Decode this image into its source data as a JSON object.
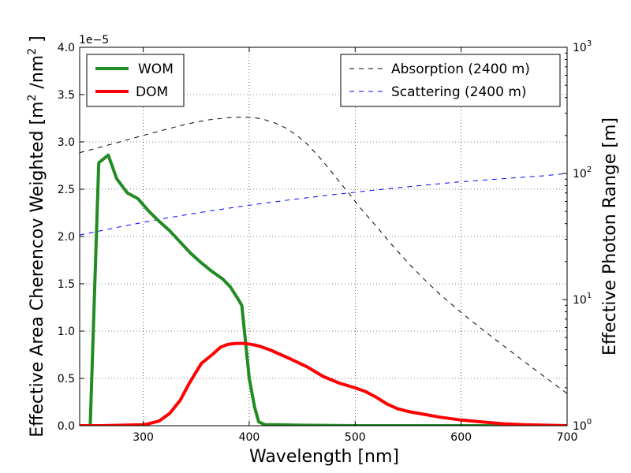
{
  "chart_data": {
    "type": "line",
    "xlabel": "Wavelength [nm]",
    "ylabel_left_prefix": "Effective Area Cherencov Weighted [m",
    "ylabel_left_sup1": "2",
    "ylabel_left_mid": " /nm",
    "ylabel_left_sup2": "2",
    "ylabel_left_suffix": " ]",
    "ylabel_right": "Effective Photon Range [m]",
    "offset_text": "1e−5",
    "xlim": [
      240,
      700
    ],
    "ylim_left": [
      0,
      4.0
    ],
    "ylim_right_log": [
      1,
      1000
    ],
    "x_ticks": [
      300,
      400,
      500,
      600,
      700
    ],
    "x_tick_labels": [
      "300",
      "400",
      "500",
      "600",
      "700"
    ],
    "y_left_ticks": [
      0,
      0.5,
      1.0,
      1.5,
      2.0,
      2.5,
      3.0,
      3.5,
      4.0
    ],
    "y_left_tick_labels": [
      "0.0",
      "0.5",
      "1.0",
      "1.5",
      "2.0",
      "2.5",
      "3.0",
      "3.5",
      "4.0"
    ],
    "y_right_ticks": [
      {
        "value": 1,
        "base": "10",
        "exp": "0"
      },
      {
        "value": 10,
        "base": "10",
        "exp": "1"
      },
      {
        "value": 100,
        "base": "10",
        "exp": "2"
      },
      {
        "value": 1000,
        "base": "10",
        "exp": "3"
      }
    ],
    "legend_left": {
      "location": "upper-left",
      "entries": [
        {
          "label": "WOM",
          "color": "#228b22"
        },
        {
          "label": "DOM",
          "color": "#ff0000"
        }
      ]
    },
    "legend_right": {
      "location": "upper-right",
      "entries": [
        {
          "label": "Absorption (2400 m)",
          "color": "#000000"
        },
        {
          "label": "Scattering (2400 m)",
          "color": "#0000ff"
        }
      ]
    },
    "series": [
      {
        "name": "WOM",
        "axis": "left",
        "color": "#228b22",
        "style": "solid",
        "x": [
          240,
          245,
          250,
          258,
          267,
          275,
          285,
          295,
          305,
          315,
          325,
          335,
          345,
          355,
          365,
          375,
          382,
          390,
          393,
          400,
          405,
          409,
          415,
          425,
          450,
          500,
          600,
          700
        ],
        "y": [
          0,
          0,
          0,
          2.78,
          2.86,
          2.61,
          2.46,
          2.4,
          2.27,
          2.16,
          2.06,
          1.94,
          1.82,
          1.72,
          1.63,
          1.55,
          1.47,
          1.33,
          1.27,
          0.5,
          0.2,
          0.04,
          0.01,
          0.01,
          0.005,
          0.0,
          0.0,
          0.0
        ]
      },
      {
        "name": "DOM",
        "axis": "left",
        "color": "#ff0000",
        "style": "solid",
        "x": [
          240,
          260,
          280,
          300,
          305,
          315,
          325,
          335,
          343,
          350,
          355,
          365,
          373,
          380,
          388,
          395,
          402,
          410,
          420,
          430,
          440,
          455,
          470,
          485,
          500,
          510,
          520,
          530,
          540,
          550,
          560,
          580,
          600,
          620,
          640,
          660,
          680,
          700
        ],
        "y": [
          0.0,
          0.0,
          0.005,
          0.01,
          0.02,
          0.05,
          0.13,
          0.27,
          0.44,
          0.57,
          0.66,
          0.75,
          0.83,
          0.86,
          0.87,
          0.87,
          0.86,
          0.84,
          0.8,
          0.75,
          0.7,
          0.62,
          0.52,
          0.45,
          0.4,
          0.36,
          0.3,
          0.23,
          0.18,
          0.15,
          0.13,
          0.09,
          0.06,
          0.04,
          0.02,
          0.01,
          0.005,
          0.0
        ]
      },
      {
        "name": "Absorption (2400 m)",
        "axis": "right",
        "color": "#000000",
        "style": "dashed",
        "x": [
          240,
          260,
          280,
          300,
          320,
          340,
          360,
          380,
          395,
          405,
          415,
          425,
          435,
          445,
          455,
          465,
          475,
          485,
          495,
          505,
          520,
          535,
          550,
          565,
          580,
          600,
          620,
          640,
          660,
          680,
          700
        ],
        "y": [
          146,
          162,
          180,
          200,
          222,
          245,
          265,
          277,
          280,
          277,
          266,
          250,
          228,
          200,
          170,
          138,
          110,
          86,
          68,
          53,
          38,
          27,
          19.5,
          14.5,
          11,
          7.9,
          5.8,
          4.3,
          3.2,
          2.4,
          1.8
        ]
      },
      {
        "name": "Scattering (2400 m)",
        "axis": "right",
        "color": "#0000ff",
        "style": "dashed",
        "x": [
          240,
          280,
          320,
          360,
          400,
          440,
          480,
          520,
          560,
          600,
          640,
          680,
          700
        ],
        "y": [
          32.5,
          38,
          44,
          50,
          56,
          62,
          68,
          74,
          80,
          86,
          91,
          96,
          100
        ]
      }
    ]
  }
}
